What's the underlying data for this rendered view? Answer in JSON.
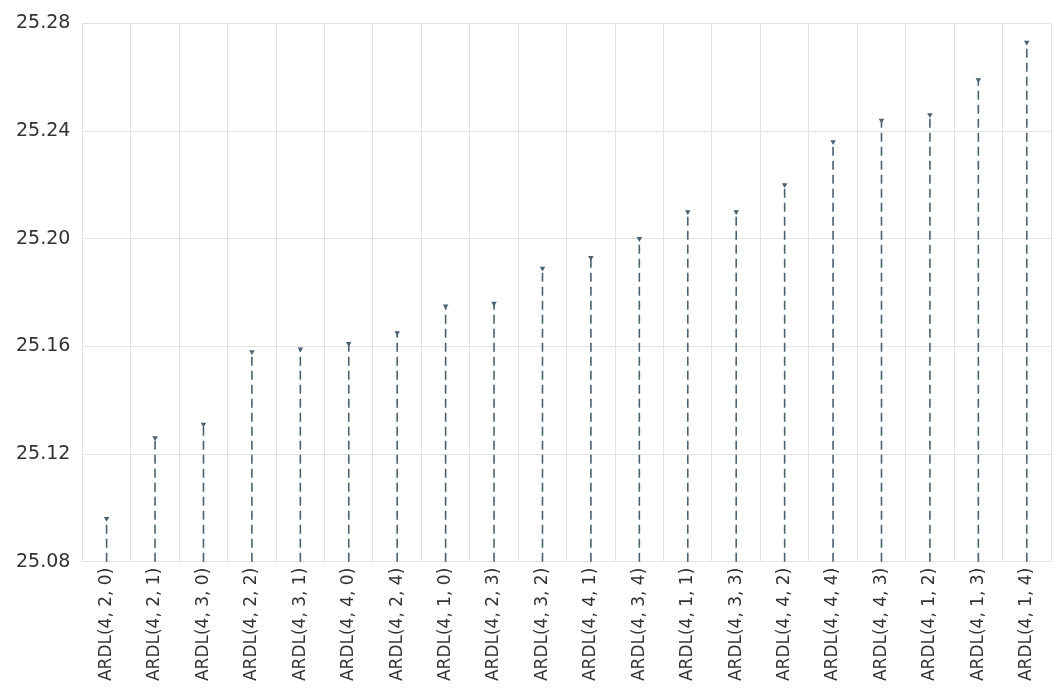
{
  "chart_data": {
    "type": "lollipop",
    "categories": [
      "ARDL(4, 2, 0)",
      "ARDL(4, 2, 1)",
      "ARDL(4, 3, 0)",
      "ARDL(4, 2, 2)",
      "ARDL(4, 3, 1)",
      "ARDL(4, 4, 0)",
      "ARDL(4, 2, 4)",
      "ARDL(4, 1, 0)",
      "ARDL(4, 2, 3)",
      "ARDL(4, 3, 2)",
      "ARDL(4, 4, 1)",
      "ARDL(4, 3, 4)",
      "ARDL(4, 1, 1)",
      "ARDL(4, 3, 3)",
      "ARDL(4, 4, 2)",
      "ARDL(4, 4, 4)",
      "ARDL(4, 4, 3)",
      "ARDL(4, 1, 2)",
      "ARDL(4, 1, 3)",
      "ARDL(4, 1, 4)"
    ],
    "values": [
      25.096,
      25.126,
      25.131,
      25.158,
      25.159,
      25.161,
      25.165,
      25.175,
      25.176,
      25.189,
      25.193,
      25.2,
      25.21,
      25.21,
      25.22,
      25.236,
      25.244,
      25.246,
      25.259,
      25.273
    ],
    "color": "#4a6170",
    "ylim": [
      25.08,
      25.28
    ],
    "yticks": [
      {
        "value": 25.08,
        "label": "25.08"
      },
      {
        "value": 25.12,
        "label": "25.12"
      },
      {
        "value": 25.16,
        "label": "25.16"
      },
      {
        "value": 25.2,
        "label": "25.20"
      },
      {
        "value": 25.24,
        "label": "25.24"
      },
      {
        "value": 25.28,
        "label": "25.28"
      }
    ],
    "grid": true,
    "marker": "triangle",
    "line_style": "dashed"
  }
}
